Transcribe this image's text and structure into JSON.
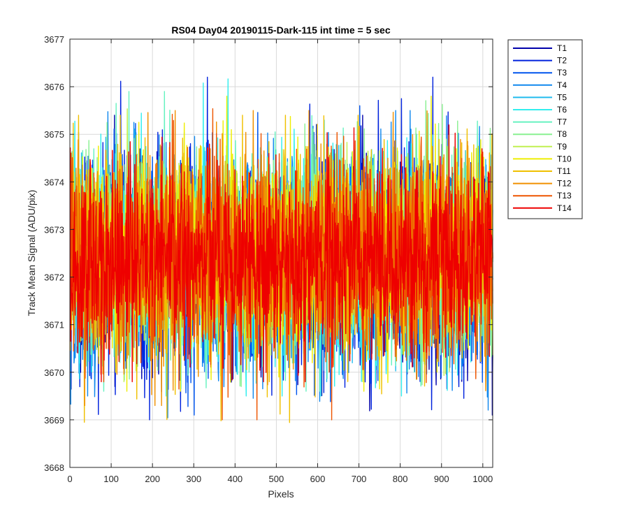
{
  "chart_data": {
    "type": "line",
    "title": "RS04 Day04 20190115-Dark-115 int time = 5 sec",
    "xlabel": "Pixels",
    "ylabel": "Track Mean Signal (ADU/pix)",
    "xlim": [
      0,
      1024
    ],
    "ylim": [
      3668,
      3677
    ],
    "xticks": [
      0,
      100,
      200,
      300,
      400,
      500,
      600,
      700,
      800,
      900,
      1000
    ],
    "yticks": [
      3668,
      3669,
      3670,
      3671,
      3672,
      3673,
      3674,
      3675,
      3676,
      3677
    ],
    "grid": true,
    "legend_position": "outside-top-right",
    "num_points": 1024,
    "series": [
      {
        "name": "T1",
        "color": "#0000aa",
        "mean": 3672.3,
        "min": 3669.1,
        "max": 3675.4
      },
      {
        "name": "T2",
        "color": "#0022dd",
        "mean": 3672.3,
        "min": 3669.0,
        "max": 3676.2
      },
      {
        "name": "T3",
        "color": "#0055ee",
        "mean": 3672.3,
        "min": 3669.1,
        "max": 3675.6
      },
      {
        "name": "T4",
        "color": "#1188ee",
        "mean": 3672.4,
        "min": 3668.6,
        "max": 3675.5
      },
      {
        "name": "T5",
        "color": "#22bbee",
        "mean": 3672.4,
        "min": 3669.8,
        "max": 3675.3
      },
      {
        "name": "T6",
        "color": "#33eeee",
        "mean": 3672.4,
        "min": 3669.5,
        "max": 3676.2
      },
      {
        "name": "T7",
        "color": "#66f2c0",
        "mean": 3672.4,
        "min": 3669.6,
        "max": 3675.9
      },
      {
        "name": "T8",
        "color": "#88f090",
        "mean": 3672.5,
        "min": 3669.7,
        "max": 3676.1
      },
      {
        "name": "T9",
        "color": "#c0f050",
        "mean": 3672.5,
        "min": 3669.8,
        "max": 3675.6
      },
      {
        "name": "T10",
        "color": "#eeee00",
        "mean": 3672.5,
        "min": 3669.6,
        "max": 3675.8
      },
      {
        "name": "T11",
        "color": "#f0c000",
        "mean": 3672.5,
        "min": 3668.7,
        "max": 3675.4
      },
      {
        "name": "T12",
        "color": "#f09000",
        "mean": 3672.4,
        "min": 3669.3,
        "max": 3675.5
      },
      {
        "name": "T13",
        "color": "#ee5500",
        "mean": 3672.4,
        "min": 3669.0,
        "max": 3675.6
      },
      {
        "name": "T14",
        "color": "#ee0000",
        "mean": 3672.4,
        "min": 3669.8,
        "max": 3675.8
      }
    ]
  }
}
